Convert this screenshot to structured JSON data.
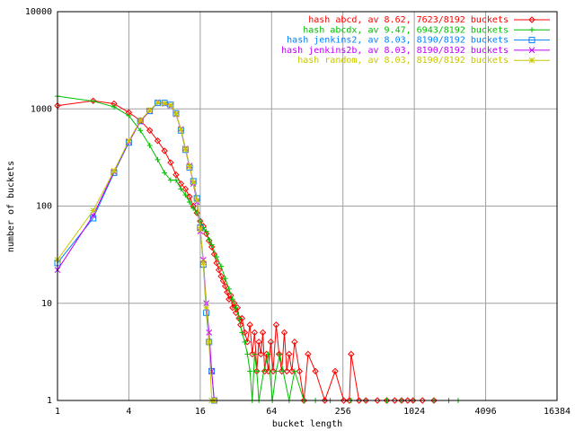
{
  "chart_data": {
    "type": "line",
    "xlabel": "bucket length",
    "ylabel": "number of buckets",
    "xscale": "log",
    "yscale": "log",
    "grid": true,
    "legend": "top-right",
    "xlim": [
      1,
      16384
    ],
    "ylim": [
      1,
      10000
    ],
    "xticks": [
      1,
      4,
      16,
      64,
      256,
      1024,
      4096,
      16384
    ],
    "yticks": [
      1,
      10,
      100,
      1000,
      10000
    ],
    "series": [
      {
        "name": "hash abcd, av 8.62, 7623/8192 buckets",
        "color": "#ff0000",
        "marker": "diamond",
        "x": [
          1,
          2,
          3,
          4,
          5,
          6,
          7,
          8,
          9,
          10,
          11,
          12,
          13,
          14,
          15,
          16,
          17,
          18,
          19,
          20,
          21,
          22,
          23,
          24,
          25,
          26,
          27,
          28,
          29,
          30,
          31,
          32,
          33,
          34,
          35,
          36,
          38,
          40,
          42,
          44,
          46,
          48,
          50,
          52,
          54,
          56,
          58,
          60,
          63,
          66,
          70,
          74,
          78,
          82,
          86,
          90,
          95,
          100,
          110,
          120,
          130,
          150,
          180,
          220,
          260,
          290,
          300,
          350,
          400,
          500,
          600,
          700,
          800,
          900,
          1000,
          1200,
          1500
        ],
        "values": [
          1080,
          1210,
          1130,
          920,
          760,
          600,
          470,
          370,
          280,
          210,
          170,
          150,
          125,
          100,
          85,
          70,
          62,
          52,
          44,
          38,
          32,
          26,
          22,
          19,
          17,
          15,
          13,
          11,
          12,
          9,
          10,
          8,
          9,
          7,
          6,
          7,
          5,
          4,
          6,
          3,
          5,
          2,
          4,
          3,
          5,
          2,
          3,
          2,
          4,
          2,
          6,
          3,
          2,
          5,
          2,
          3,
          2,
          4,
          2,
          1,
          3,
          2,
          1,
          2,
          1,
          1,
          3,
          1,
          1,
          1,
          1,
          1,
          1,
          1,
          1,
          1,
          1
        ]
      },
      {
        "name": "hash abcdx, av 9.47, 6943/8192 buckets",
        "color": "#00c000",
        "marker": "plus",
        "x": [
          1,
          2,
          3,
          4,
          5,
          6,
          7,
          8,
          9,
          10,
          11,
          12,
          13,
          14,
          15,
          16,
          17,
          18,
          19,
          20,
          22,
          24,
          26,
          28,
          30,
          32,
          34,
          36,
          38,
          40,
          42,
          44,
          46,
          48,
          50,
          55,
          60,
          65,
          70,
          75,
          80,
          90,
          100,
          120,
          150,
          200,
          300,
          400,
          600,
          800,
          1000,
          1500,
          2000,
          2400
        ],
        "values": [
          1350,
          1200,
          1050,
          850,
          600,
          420,
          300,
          220,
          185,
          185,
          150,
          130,
          110,
          95,
          85,
          70,
          60,
          55,
          45,
          40,
          30,
          24,
          18,
          14,
          11,
          9,
          7,
          5,
          4,
          3,
          2,
          1,
          3,
          2,
          1,
          2,
          3,
          1,
          2,
          3,
          2,
          1,
          2,
          1,
          1,
          1,
          1,
          1,
          1,
          1,
          1,
          1,
          1,
          1
        ]
      },
      {
        "name": "hash jenkins2, av 8.03, 8190/8192 buckets",
        "color": "#0080ff",
        "marker": "square",
        "x": [
          1,
          2,
          3,
          4,
          5,
          6,
          7,
          8,
          9,
          10,
          11,
          12,
          13,
          14,
          15,
          16,
          17,
          18,
          19,
          20,
          21
        ],
        "values": [
          26,
          75,
          220,
          450,
          750,
          950,
          1150,
          1150,
          1100,
          900,
          600,
          380,
          250,
          180,
          120,
          60,
          25,
          8,
          4,
          2,
          1
        ]
      },
      {
        "name": "hash jenkins2b, av 8.03, 8190/8192 buckets",
        "color": "#c000ff",
        "marker": "cross",
        "x": [
          1,
          2,
          3,
          4,
          5,
          6,
          7,
          8,
          9,
          10,
          11,
          12,
          13,
          14,
          15,
          16,
          17,
          18,
          19,
          20,
          21
        ],
        "values": [
          22,
          80,
          225,
          460,
          740,
          960,
          1170,
          1130,
          1080,
          880,
          620,
          390,
          260,
          170,
          110,
          55,
          28,
          10,
          5,
          2,
          1
        ]
      },
      {
        "name": "hash random, av 8.03, 8190/8192 buckets",
        "color": "#c8c800",
        "marker": "star",
        "x": [
          1,
          2,
          3,
          4,
          5,
          6,
          7,
          8,
          9,
          10,
          11,
          12,
          13,
          14,
          15,
          16,
          17,
          18,
          19,
          20,
          21
        ],
        "values": [
          28,
          90,
          230,
          470,
          760,
          970,
          1160,
          1140,
          1090,
          890,
          610,
          385,
          255,
          175,
          115,
          58,
          26,
          9,
          4,
          1,
          1
        ]
      }
    ]
  }
}
